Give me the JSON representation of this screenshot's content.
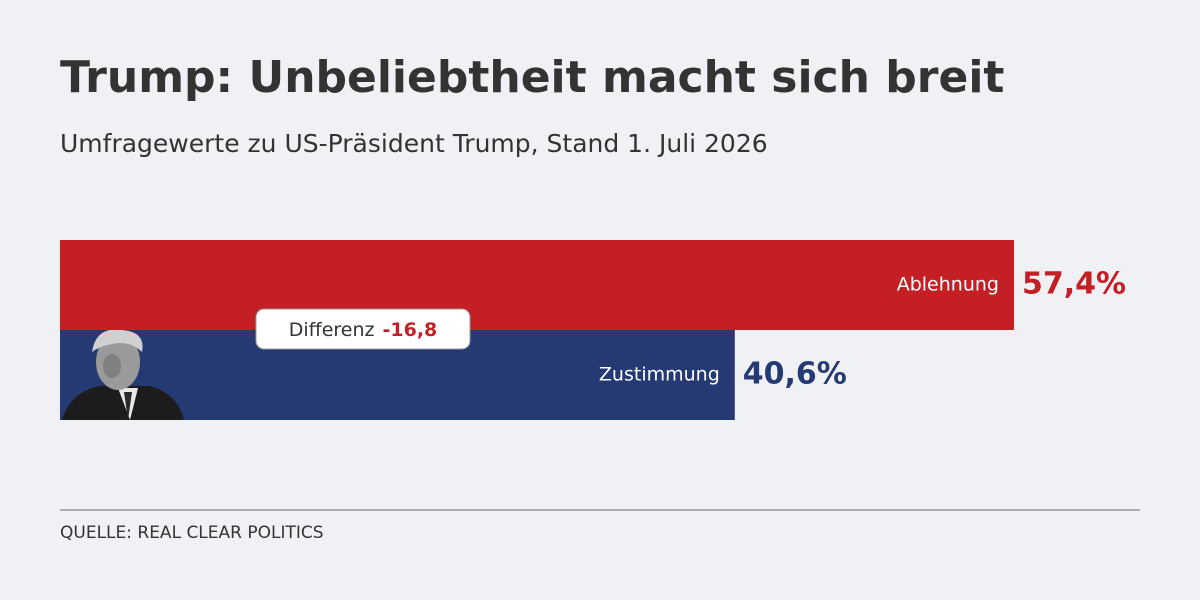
{
  "chart_data": {
    "type": "hbar",
    "title": "Trump: Unbeliebtheit macht sich breit",
    "subtitle": "Umfragewerte zu US-Präsident Trump, Stand 1. Juli 2026",
    "categories": [
      "Ablehnung",
      "Zustimmung"
    ],
    "values": [
      57.4,
      40.6
    ],
    "value_labels": [
      "57,4%",
      "40,6%"
    ],
    "colors": [
      "#c41f25",
      "#253a72"
    ],
    "annotation": {
      "label": "Differenz",
      "value": "-16,8"
    },
    "source": "QUELLE: REAL CLEAR POLITICS"
  }
}
